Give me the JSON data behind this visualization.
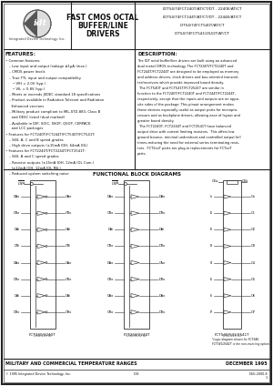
{
  "title_main": "FAST CMOS OCTAL\nBUFFER/LINE\nDRIVERS",
  "part_numbers": [
    "IDT54/74FCT240T/AT/CT/DT - 2240E/AT/CT",
    "IDT54/74FCT244T/AT/CT/DT - 2244E/AT/CT",
    "IDT54/74FCT540T/AT/CT",
    "IDT54/74FCT541/2541T/AT/CT"
  ],
  "bg_color": "#ffffff",
  "border_color": "#333333",
  "text_color": "#111111",
  "footer_text_left": "MILITARY AND COMMERCIAL TEMPERATURE RANGES",
  "footer_text_right": "DECEMBER 1995",
  "footer_bottom_left": "© 1995 Integrated Device Technology, Inc.",
  "footer_bottom_right": "DSG-2000-8",
  "footer_page": "0.0",
  "footer_page_num": "1",
  "diagram_title": "FUNCTIONAL BLOCK DIAGRAMS",
  "diagram1_label": "FCT240/2240T",
  "diagram2_label": "FCT244/2244T",
  "diagram3_label": "FCT540/541/2541T",
  "diagram3_note": "*Logic diagram shown for FCT540.\nFCT541/2541T is the non-inverting option.",
  "features_lines": [
    [
      "• Common features:",
      0
    ],
    [
      "– Low input and output leakage ≤1μA (max.)",
      4
    ],
    [
      "– CMOS power levels",
      4
    ],
    [
      "– True TTL input and output compatibility",
      4
    ],
    [
      "• VIH = 2.0V (typ.)",
      8
    ],
    [
      "• VIL = 0.8V (typ.)",
      8
    ],
    [
      "– Meets or exceeds JEDEC standard 18 specifications",
      4
    ],
    [
      "– Product available in Radiation Tolerant and Radiation",
      4
    ],
    [
      "  Enhanced versions",
      4
    ],
    [
      "– Military product compliant to MIL-STD-883, Class B",
      4
    ],
    [
      "  and DESC listed (dual marked)",
      4
    ],
    [
      "– Available in DIP, SOIC, SSOP, QSOP, CERPACK",
      4
    ],
    [
      "  and LCC packages",
      4
    ],
    [
      "• Features for FCT240T/FCT244T/FCT540T/FCT541T:",
      0
    ],
    [
      "– S60, A, C and B speed grades",
      4
    ],
    [
      "– High drive outputs (±15mA IOH, 64mA IOL)",
      4
    ],
    [
      "• Features for FCT2240T/FCT2244T/FCT2541T:",
      0
    ],
    [
      "– S60, A and C speed grades",
      4
    ],
    [
      "– Resistor outputs (±15mA IOH, 12mA IOL Com.)",
      4
    ],
    [
      "  (±12mA IOH, 12mA IOL Mil.)",
      4
    ],
    [
      "– Reduced system switching noise",
      4
    ]
  ],
  "description_lines": [
    "The IDT octal buffer/line drivers are built using an advanced",
    "dual metal CMOS technology. The FCT240T/FCT2240T and",
    "FCT244T/FCT2244T are designed to be employed as memory",
    "and address drivers, clock drivers and bus-oriented transmit-",
    "ter/receivers which provide improved board density.",
    "  The FCT540T and FCT541T/FCT2541T are similar in",
    "function to the FCT240T/FCT2240T and FCT244T/FCT2244T,",
    "respectively, except that the inputs and outputs are on oppo-",
    "site sides of the package. This pinout arrangement makes",
    "these devices especially useful as output ports for micropro-",
    "cessors and as backplane drivers, allowing ease of layout and",
    "greater board density.",
    "  The FCT2240T, FCT2244T and FCT2541T have balanced",
    "output drive with current limiting resistors.  This offers low",
    "ground bounce, minimal undershoot and controlled output fall",
    "times-reducing the need for external series terminating resis-",
    "tors.  FCT2xxT parts are plug-in replacements for FCTxxT",
    "parts."
  ],
  "d1_input_labels": [
    "DAo",
    "DBo",
    "DAi",
    "DBi",
    "DAo",
    "DBo",
    "DAi",
    "DBo"
  ],
  "d1_output_labels": [
    "OBo",
    "OBo",
    "OAi",
    "OBi",
    "OAo",
    "OBo",
    "OAi",
    "OBo"
  ],
  "d2_input_labels": [
    "DAo",
    "OBo",
    "DAi",
    "OBo",
    "DAo",
    "OBo",
    "DAo",
    "OBo"
  ],
  "d2_output_labels": [
    "DAo",
    "DBo",
    "DAi",
    "DBo",
    "CAo",
    "DBo",
    "DAo",
    "DBo"
  ],
  "d3_input_labels": [
    "Io",
    "I1",
    "I2",
    "I3",
    "I4",
    "I5",
    "I6",
    "I7"
  ],
  "d3_output_labels": [
    "Oo",
    "O1",
    "O2",
    "O3",
    "O4",
    "O5",
    "O6",
    "O7"
  ]
}
